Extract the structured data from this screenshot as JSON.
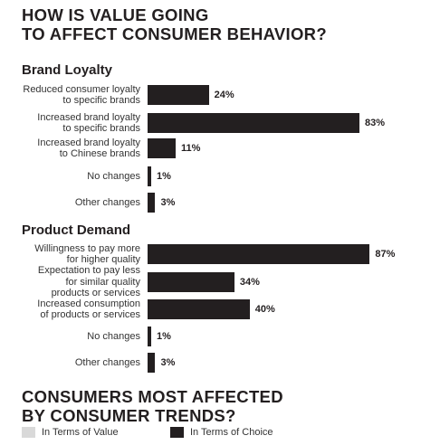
{
  "header": {
    "title_lines": [
      "HOW IS VALUE GOING",
      "TO AFFECT CONSUMER BEHAVIOR?"
    ]
  },
  "chart_data": [
    {
      "type": "bar",
      "orientation": "horizontal",
      "title": "Brand Loyalty",
      "unit": "%",
      "categories": [
        [
          "Reduced consumer loyalty",
          "to specific brands"
        ],
        [
          "Increased brand loyalty",
          "to specific brands"
        ],
        [
          "Increased brand loyalty",
          "to Chinese brands"
        ],
        [
          "No changes"
        ],
        [
          "Other changes"
        ]
      ],
      "values": [
        24,
        83,
        11,
        1,
        3
      ],
      "value_labels": [
        "24%",
        "83%",
        "11%",
        "1%",
        "3%"
      ],
      "bar_color": "#231f20",
      "xlim": [
        0,
        100
      ],
      "grid": false
    },
    {
      "type": "bar",
      "orientation": "horizontal",
      "title": "Product Demand",
      "unit": "%",
      "categories": [
        [
          "Willingness to pay more",
          "for higher quality"
        ],
        [
          "Expectation to pay less",
          "for similar quality",
          "products or services"
        ],
        [
          "Increased consumption",
          "of products or services"
        ],
        [
          "No changes"
        ],
        [
          "Other changes"
        ]
      ],
      "values": [
        87,
        34,
        40,
        1,
        3
      ],
      "value_labels": [
        "87%",
        "34%",
        "40%",
        "1%",
        "3%"
      ],
      "bar_color": "#231f20",
      "xlim": [
        0,
        100
      ],
      "grid": false
    }
  ],
  "footer": {
    "title_lines": [
      "CONSUMERS MOST AFFECTED",
      "BY CONSUMER TRENDS?"
    ],
    "legend": [
      {
        "label": "In Terms of Value",
        "color": "#d9d9d9"
      },
      {
        "label": "In Terms of Choice",
        "color": "#231f20"
      }
    ]
  }
}
